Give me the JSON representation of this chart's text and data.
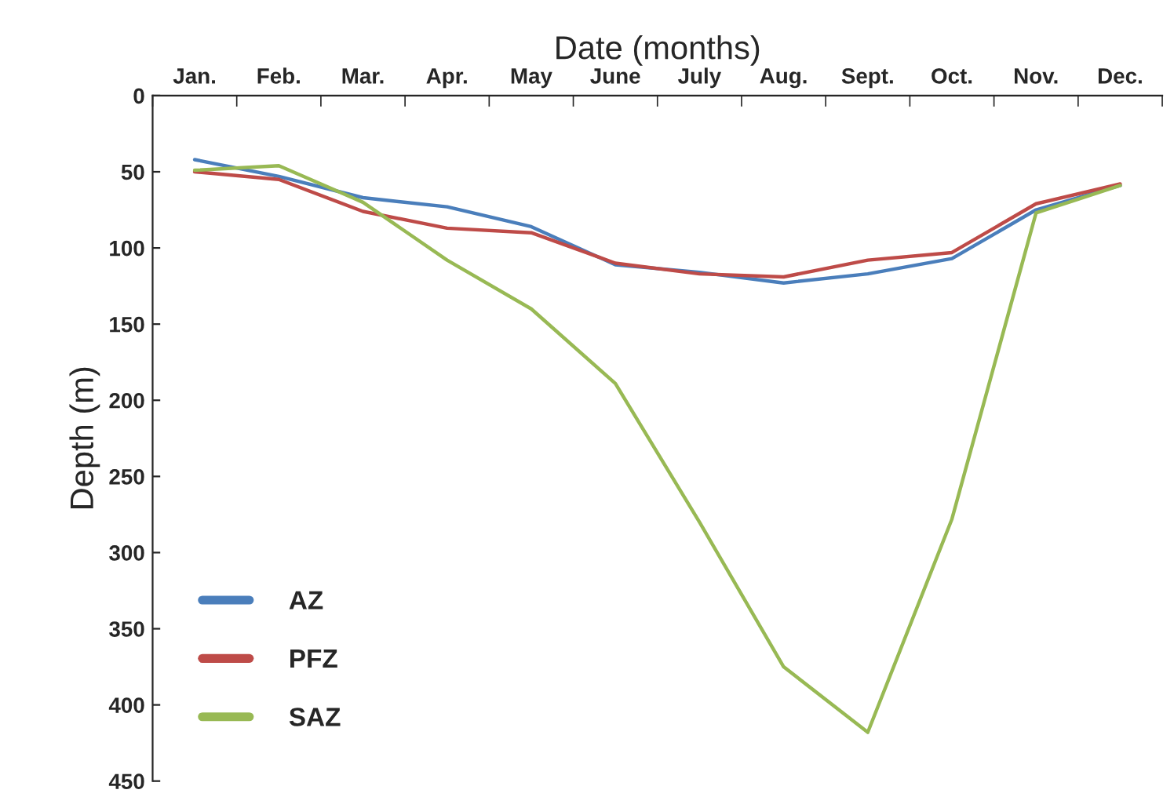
{
  "chart_data": {
    "type": "line",
    "xlabel": "Date (months)",
    "ylabel": "Depth (m)",
    "categories": [
      "Jan.",
      "Feb.",
      "Mar.",
      "Apr.",
      "May",
      "June",
      "July",
      "Aug.",
      "Sept.",
      "Oct.",
      "Nov.",
      "Dec."
    ],
    "series": [
      {
        "name": "AZ",
        "color": "#4a7ebb",
        "values": [
          42,
          53,
          67,
          73,
          86,
          111,
          116,
          123,
          117,
          107,
          75,
          59
        ]
      },
      {
        "name": "PFZ",
        "color": "#be4b48",
        "values": [
          50,
          55,
          76,
          87,
          90,
          110,
          117,
          119,
          108,
          103,
          71,
          58
        ]
      },
      {
        "name": "SAZ",
        "color": "#98b954",
        "values": [
          49,
          46,
          70,
          108,
          140,
          189,
          280,
          375,
          418,
          278,
          77,
          59
        ]
      }
    ],
    "ylim": [
      450,
      0
    ],
    "yticks": [
      0,
      50,
      100,
      150,
      200,
      250,
      300,
      350,
      400,
      450
    ],
    "legend": "bottom left",
    "grid": false,
    "marker": "none",
    "line_style": "solid"
  }
}
